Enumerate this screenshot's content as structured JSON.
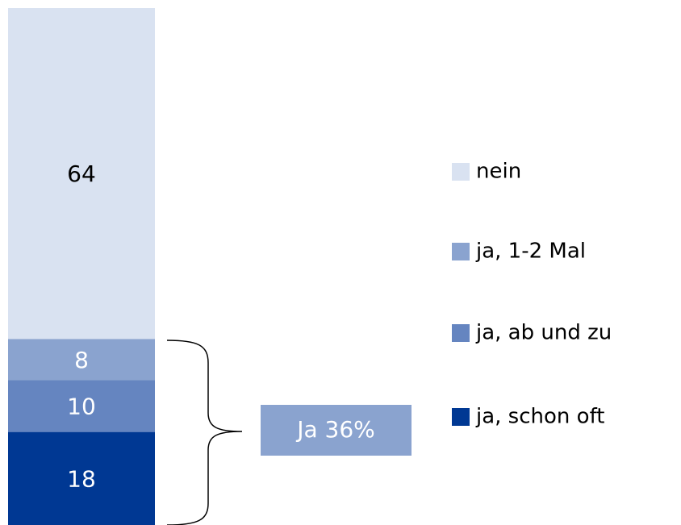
{
  "chart_data": {
    "type": "stacked_bar",
    "ylim": [
      0,
      100
    ],
    "series": [
      {
        "name": "nein",
        "color": "#d9e2f1",
        "label_color": "#000000",
        "values": [
          64
        ]
      },
      {
        "name": "ja, 1-2 Mal",
        "color": "#8aa3cf",
        "label_color": "#ffffff",
        "values": [
          8
        ]
      },
      {
        "name": "ja, ab und zu",
        "color": "#6585c0",
        "label_color": "#ffffff",
        "values": [
          10
        ]
      },
      {
        "name": "ja, schon oft",
        "color": "#003893",
        "label_color": "#ffffff",
        "values": [
          18
        ]
      }
    ],
    "annotation": {
      "text": "Ja 36%",
      "color": "#8aa3cf"
    }
  }
}
